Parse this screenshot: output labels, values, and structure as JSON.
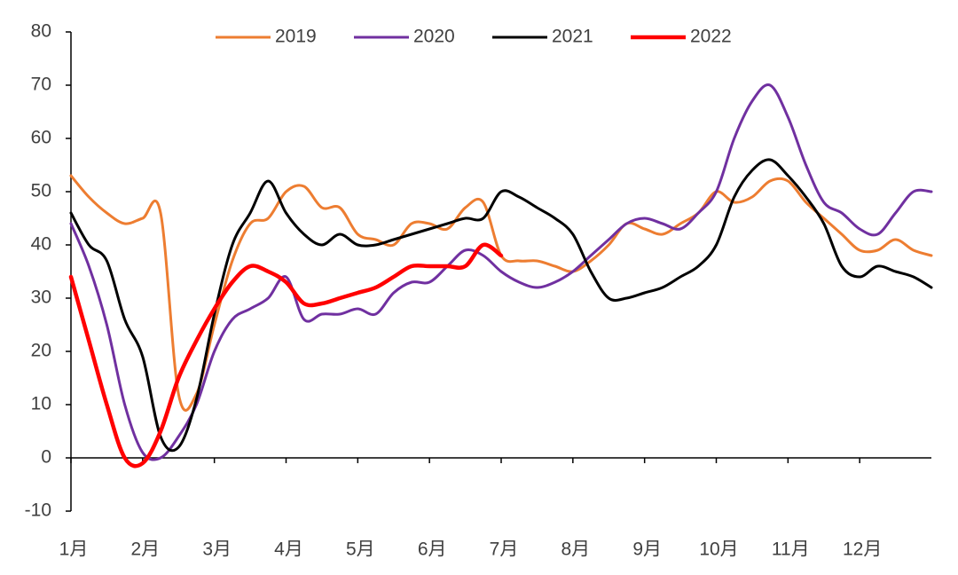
{
  "chart_data": {
    "type": "line",
    "categories": [
      "1月",
      null,
      null,
      null,
      "2月",
      null,
      null,
      null,
      "3月",
      null,
      null,
      null,
      "4月",
      null,
      null,
      null,
      "5月",
      null,
      null,
      null,
      "6月",
      null,
      null,
      null,
      "7月",
      null,
      null,
      null,
      "8月",
      null,
      null,
      null,
      "9月",
      null,
      null,
      null,
      "10月",
      null,
      null,
      null,
      "11月",
      null,
      null,
      null,
      "12月",
      null,
      null,
      null,
      null
    ],
    "series": [
      {
        "name": "2019",
        "color": "#ed7d31",
        "width": 3,
        "values": [
          53,
          49,
          46,
          44,
          45,
          46,
          12,
          12,
          25,
          37,
          44,
          45,
          50,
          51,
          47,
          47,
          42,
          41,
          40,
          44,
          44,
          43,
          47,
          48,
          38,
          37,
          37,
          36,
          35,
          37,
          40,
          44,
          43,
          42,
          44,
          46,
          50,
          48,
          49,
          52,
          52,
          48,
          45,
          42,
          39,
          39,
          41,
          39,
          38
        ]
      },
      {
        "name": "2020",
        "color": "#7030a0",
        "width": 3,
        "values": [
          44,
          36,
          25,
          10,
          1,
          0,
          4,
          10,
          20,
          26,
          28,
          30,
          34,
          26,
          27,
          27,
          28,
          27,
          31,
          33,
          33,
          36,
          39,
          38,
          35,
          33,
          32,
          33,
          35,
          38,
          41,
          44,
          45,
          44,
          43,
          46,
          50,
          60,
          67,
          70,
          64,
          55,
          48,
          46,
          43,
          42,
          46,
          50,
          50
        ]
      },
      {
        "name": "2021",
        "color": "#000000",
        "width": 3,
        "values": [
          46,
          40,
          37,
          26,
          19,
          4,
          2,
          11,
          27,
          40,
          46,
          52,
          46,
          42,
          40,
          42,
          40,
          40,
          41,
          42,
          43,
          44,
          45,
          45,
          50,
          49,
          47,
          45,
          42,
          35,
          30,
          30,
          31,
          32,
          34,
          36,
          40,
          49,
          54,
          56,
          53,
          49,
          44,
          36,
          34,
          36,
          35,
          34,
          32
        ]
      },
      {
        "name": "2022",
        "color": "#ff0000",
        "width": 4.5,
        "values": [
          34,
          22,
          10,
          0,
          -1,
          5,
          15,
          22,
          28,
          33,
          36,
          35,
          33,
          29,
          29,
          30,
          31,
          32,
          34,
          36,
          36,
          36,
          36,
          40,
          38,
          null,
          null,
          null,
          null,
          null,
          null,
          null,
          null,
          null,
          null,
          null,
          null,
          null,
          null,
          null,
          null,
          null,
          null,
          null,
          null,
          null,
          null,
          null,
          null
        ]
      }
    ],
    "ylim": [
      -10,
      80
    ],
    "yticks": [
      -10,
      0,
      10,
      20,
      30,
      40,
      50,
      60,
      70,
      80
    ],
    "legend": "top",
    "grid": false
  }
}
